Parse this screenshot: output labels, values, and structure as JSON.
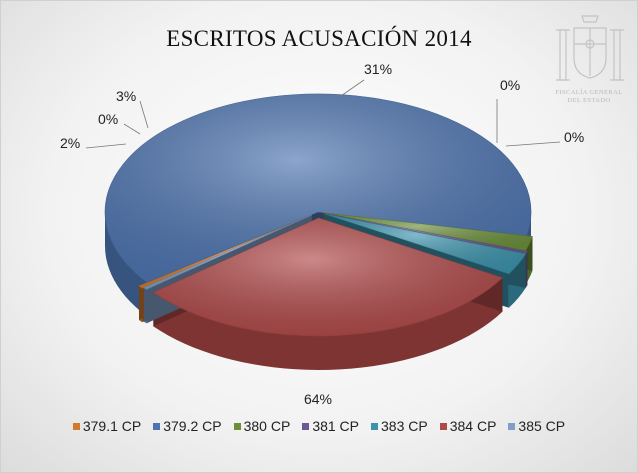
{
  "chart_data": {
    "type": "pie",
    "title": "ESCRITOS ACUSACIÓN 2014",
    "categories": [
      "379.1 CP",
      "379.2 CP",
      "380 CP",
      "381 CP",
      "383 CP",
      "384 CP",
      "385 CP"
    ],
    "values": [
      0.4,
      64,
      2,
      0.3,
      3,
      31,
      0.3
    ],
    "data_labels": [
      "0%",
      "64%",
      "2%",
      "0%",
      "3%",
      "31%",
      "0%"
    ],
    "colors": [
      "#d07a2e",
      "#4d74b0",
      "#6b8f3a",
      "#6c5a92",
      "#3c93ad",
      "#b04848",
      "#7f9fc8"
    ],
    "legend_position": "bottom",
    "three_d": true
  },
  "logo_text": [
    "FISCALÍA GENERAL",
    "DEL ESTADO"
  ]
}
